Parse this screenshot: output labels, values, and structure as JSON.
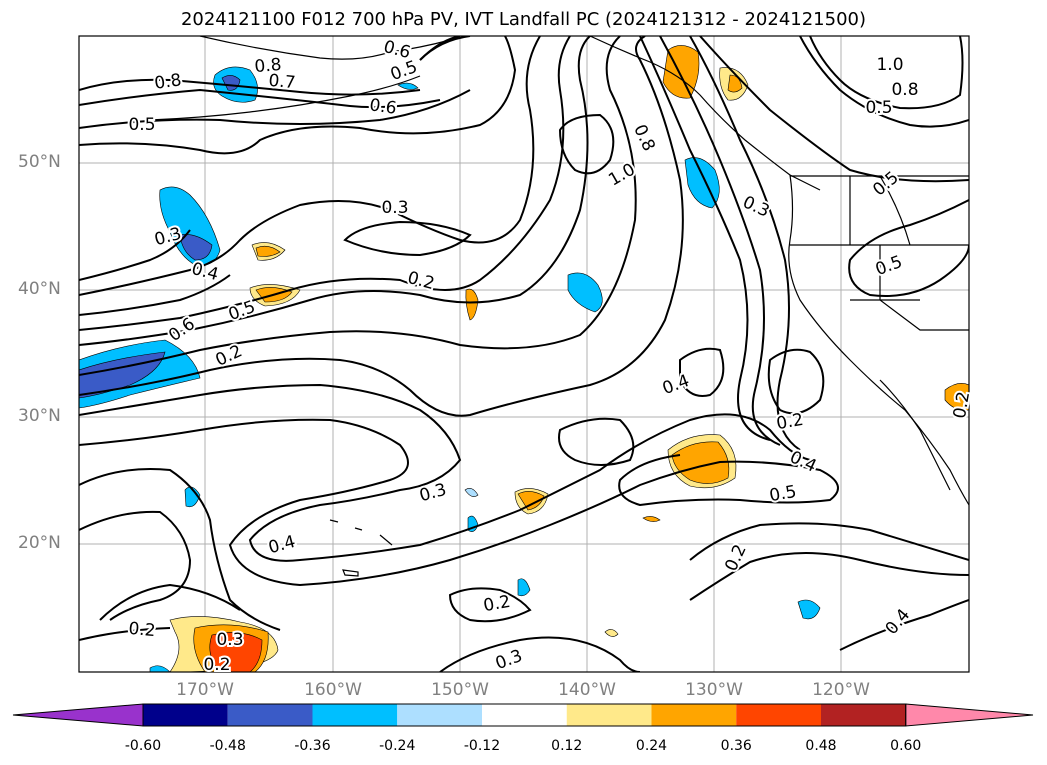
{
  "title": "2024121100 F012 700 hPa PV, IVT Landfall PC (2024121312 - 2024121500)",
  "axes": {
    "lat_labels": [
      "50°N",
      "40°N",
      "30°N",
      "20°N"
    ],
    "lon_labels": [
      "170°W",
      "160°W",
      "150°W",
      "140°W",
      "130°W",
      "120°W"
    ]
  },
  "contour_labels": [
    "0.8",
    "0.8",
    "0.7",
    "0.6",
    "0.5",
    "0.6",
    "0.5",
    "0.8",
    "1.0",
    "0.3",
    "0.3",
    "0.2",
    "0.4",
    "0.5",
    "0.6",
    "0.2",
    "1.0",
    "0.8",
    "0.5",
    "0.5",
    "0.5",
    "0.3",
    "0.4",
    "0.2",
    "0.4",
    "0.5",
    "0.3",
    "0.4",
    "0.2",
    "0.2",
    "0.2",
    "0.3",
    "0.3",
    "0.2",
    "0.4",
    "0.2"
  ],
  "colorbar": {
    "colors": [
      "#9932CC",
      "#00008B",
      "#3A5BC7",
      "#00BFFF",
      "#ADDFFF",
      "#FFFFFF",
      "#FFE98A",
      "#FFA500",
      "#FF4500",
      "#B22222",
      "#FF88AA"
    ],
    "tick_labels": [
      "-0.60",
      "-0.48",
      "-0.36",
      "-0.24",
      "-0.12",
      "0.12",
      "0.24",
      "0.36",
      "0.48",
      "0.60"
    ]
  }
}
